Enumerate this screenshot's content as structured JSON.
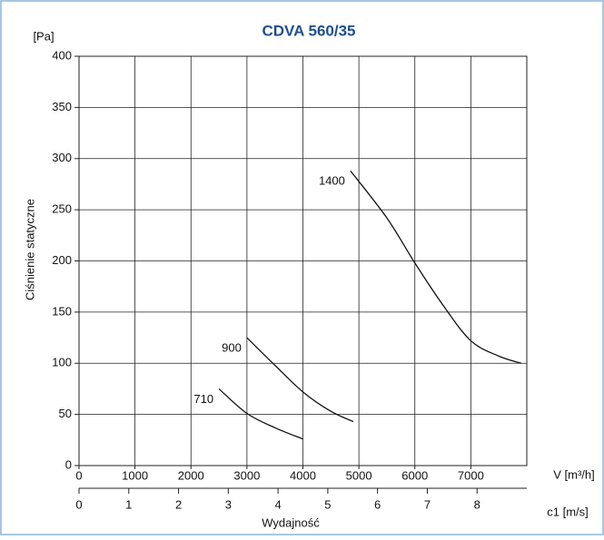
{
  "chart_data": {
    "type": "line",
    "title": "CDVA 560/35",
    "y_unit": "[Pa]",
    "ylabel": "Ciśnienie statyczne",
    "xlabel": "Wydajność",
    "x_unit": "V [m³/h]",
    "x2label": "c1 [m/s]",
    "xlim": [
      0,
      8000
    ],
    "xticks": [
      0,
      1000,
      2000,
      3000,
      4000,
      5000,
      6000,
      7000
    ],
    "ylim": [
      0,
      400
    ],
    "yticks": [
      0,
      50,
      100,
      150,
      200,
      250,
      300,
      350,
      400
    ],
    "x2lim": [
      0,
      9
    ],
    "x2ticks": [
      0,
      1,
      2,
      3,
      4,
      5,
      6,
      7,
      8
    ],
    "grid": true,
    "series": [
      {
        "name": "710",
        "color": "#111111",
        "x": [
          2500,
          3000,
          3500,
          4000
        ],
        "values": [
          75,
          51,
          37,
          26
        ]
      },
      {
        "name": "900",
        "color": "#111111",
        "x": [
          3000,
          3500,
          4000,
          4500,
          4900
        ],
        "values": [
          125,
          98,
          72,
          53,
          43
        ]
      },
      {
        "name": "1400",
        "color": "#111111",
        "x": [
          4850,
          5500,
          6000,
          6500,
          7000,
          7500,
          7900
        ],
        "values": [
          288,
          242,
          198,
          157,
          122,
          107,
          100
        ]
      }
    ]
  }
}
